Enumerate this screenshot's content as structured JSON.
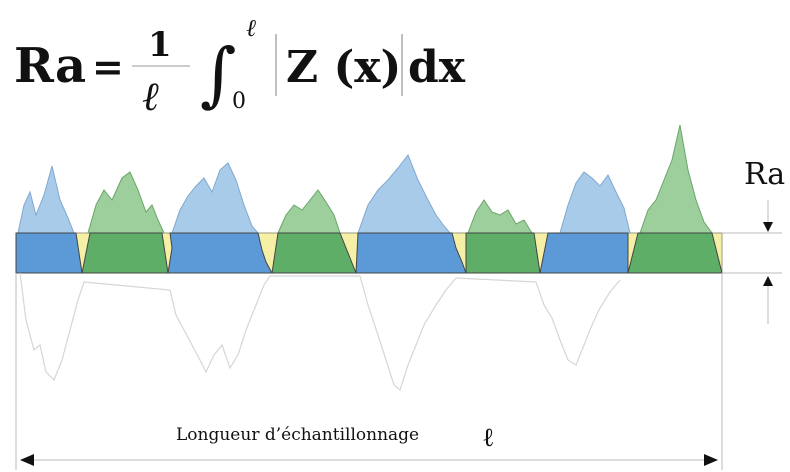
{
  "formula": {
    "lhs": "Ra",
    "equals": "=",
    "numerator": "1",
    "denominator": "ℓ",
    "integral": "∫",
    "upper_limit": "ℓ",
    "lower_limit": "0",
    "body": "Z (x)",
    "differential": "dx"
  },
  "diagram": {
    "ra_label": "Ra",
    "length_caption": "Longueur d’échantillonnage",
    "length_symbol": "ℓ"
  },
  "colors": {
    "band_fill": "#f6f0a6",
    "peak_blue": "#a9cbea",
    "peak_green": "#9ccf9c",
    "filled_blue": "#5b9ad6",
    "filled_green": "#5fae68",
    "outline": "#444444",
    "ghost_line": "#d6d6d6"
  }
}
